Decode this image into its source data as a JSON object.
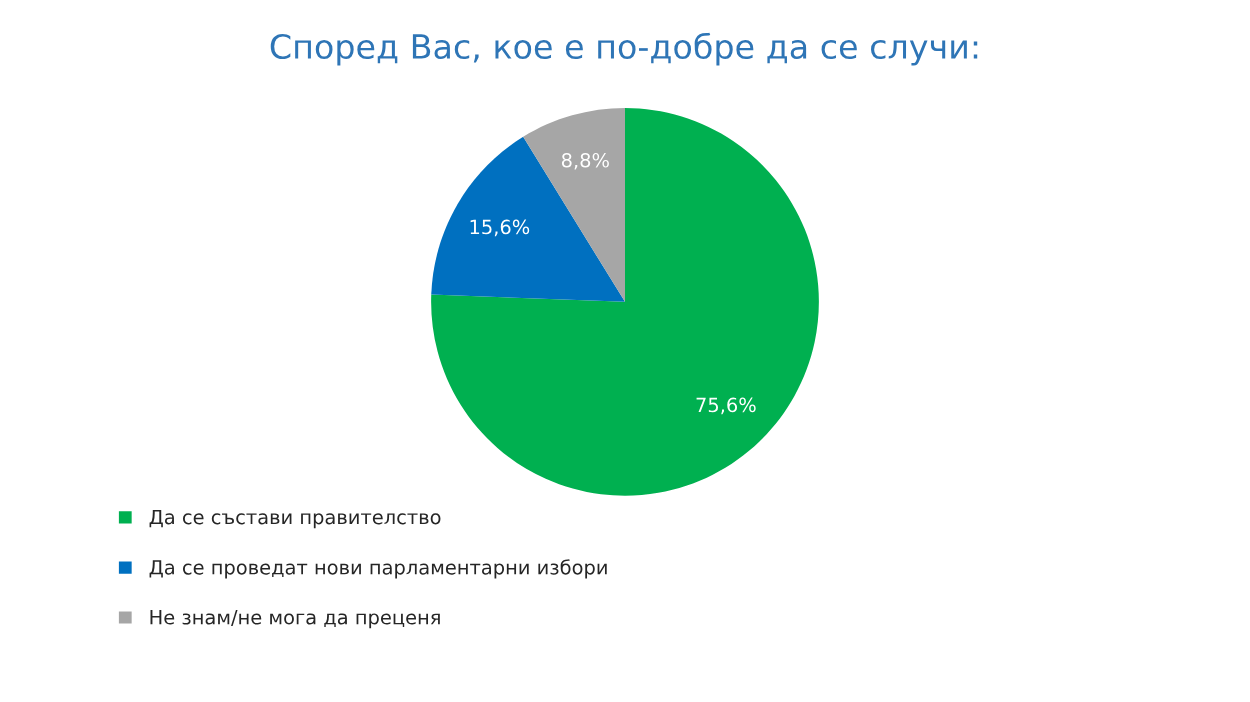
{
  "chart_data": {
    "type": "pie",
    "title": "Според Вас, кое е по-добре да се случи:",
    "categories": [
      "Да се състави правителство",
      "Да се проведат нови парламентарни избори",
      "Не знам/не мога да преценя"
    ],
    "values": [
      75.6,
      15.6,
      8.8
    ],
    "colors": [
      "#00b050",
      "#0070c0",
      "#a6a6a6"
    ],
    "value_labels": [
      "75,6%",
      "15,6%",
      "8,8%"
    ],
    "legend": "bottom left"
  }
}
